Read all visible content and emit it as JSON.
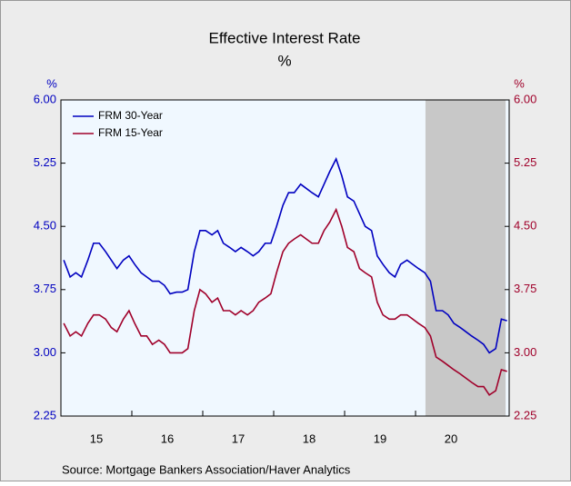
{
  "chart_data": {
    "type": "line",
    "title": "Effective Interest Rate",
    "subtitle": "%",
    "y_label": "%",
    "y2_label": "%",
    "source": "Source:  Mortgage Bankers Association/Haver Analytics",
    "x": [
      15.04,
      15.13,
      15.21,
      15.29,
      15.38,
      15.46,
      15.54,
      15.63,
      15.71,
      15.79,
      15.88,
      15.96,
      16.04,
      16.13,
      16.21,
      16.29,
      16.38,
      16.46,
      16.54,
      16.63,
      16.71,
      16.79,
      16.88,
      16.96,
      17.04,
      17.13,
      17.21,
      17.29,
      17.38,
      17.46,
      17.54,
      17.63,
      17.71,
      17.79,
      17.88,
      17.96,
      18.04,
      18.13,
      18.21,
      18.29,
      18.38,
      18.46,
      18.54,
      18.63,
      18.71,
      18.79,
      18.88,
      18.96,
      19.04,
      19.13,
      19.21,
      19.29,
      19.38,
      19.46,
      19.54,
      19.63,
      19.71,
      19.79,
      19.88,
      19.96,
      20.04,
      20.13,
      20.21,
      20.29,
      20.38,
      20.46,
      20.54,
      20.63,
      20.71,
      20.79,
      20.88,
      20.96,
      21.04,
      21.13,
      21.21,
      21.29
    ],
    "series": [
      {
        "name": "FRM 30-Year",
        "color": "#0000c0",
        "axis": "y",
        "values": [
          4.1,
          3.9,
          3.95,
          3.9,
          4.1,
          4.3,
          4.3,
          4.2,
          4.1,
          4.0,
          4.1,
          4.15,
          4.05,
          3.95,
          3.9,
          3.85,
          3.85,
          3.8,
          3.7,
          3.72,
          3.72,
          3.75,
          4.2,
          4.45,
          4.45,
          4.4,
          4.45,
          4.3,
          4.25,
          4.2,
          4.25,
          4.2,
          4.15,
          4.2,
          4.3,
          4.3,
          4.5,
          4.75,
          4.9,
          4.9,
          5.0,
          4.95,
          4.9,
          4.85,
          5.0,
          5.15,
          5.3,
          5.1,
          4.85,
          4.8,
          4.65,
          4.5,
          4.45,
          4.15,
          4.05,
          3.95,
          3.9,
          4.05,
          4.1,
          4.05,
          4.0,
          3.95,
          3.85,
          3.5,
          3.5,
          3.45,
          3.35,
          3.3,
          3.25,
          3.2,
          3.15,
          3.1,
          3.0,
          3.05,
          3.4,
          3.38
        ]
      },
      {
        "name": "FRM 15-Year",
        "color": "#a0002a",
        "axis": "y2",
        "values": [
          3.35,
          3.2,
          3.25,
          3.2,
          3.35,
          3.45,
          3.45,
          3.4,
          3.3,
          3.25,
          3.4,
          3.5,
          3.35,
          3.2,
          3.2,
          3.1,
          3.15,
          3.1,
          3.0,
          3.0,
          3.0,
          3.05,
          3.5,
          3.75,
          3.7,
          3.6,
          3.65,
          3.5,
          3.5,
          3.45,
          3.5,
          3.45,
          3.5,
          3.6,
          3.65,
          3.7,
          3.95,
          4.2,
          4.3,
          4.35,
          4.4,
          4.35,
          4.3,
          4.3,
          4.45,
          4.55,
          4.7,
          4.5,
          4.25,
          4.2,
          4.0,
          3.95,
          3.9,
          3.6,
          3.45,
          3.4,
          3.4,
          3.45,
          3.45,
          3.4,
          3.35,
          3.3,
          3.2,
          2.95,
          2.9,
          2.85,
          2.8,
          2.75,
          2.7,
          2.65,
          2.6,
          2.6,
          2.5,
          2.55,
          2.8,
          2.78
        ]
      }
    ],
    "xlim": [
      15,
      21.32
    ],
    "xticks": [
      {
        "value": 15,
        "label": "15"
      },
      {
        "value": 16,
        "label": "16"
      },
      {
        "value": 17,
        "label": "17"
      },
      {
        "value": 18,
        "label": "18"
      },
      {
        "value": 19,
        "label": "19"
      },
      {
        "value": 20,
        "label": "20"
      }
    ],
    "ylim": [
      2.25,
      6
    ],
    "yticks": [
      {
        "value": 2.25,
        "label": "2.25"
      },
      {
        "value": 3,
        "label": "3.00"
      },
      {
        "value": 3.75,
        "label": "3.75"
      },
      {
        "value": 4.5,
        "label": "4.50"
      },
      {
        "value": 5.25,
        "label": "5.25"
      },
      {
        "value": 6,
        "label": "6.00"
      }
    ],
    "y2lim": [
      2.25,
      6
    ],
    "y2ticks": [
      {
        "value": 2.25,
        "label": "2.25"
      },
      {
        "value": 3,
        "label": "3.00"
      },
      {
        "value": 3.75,
        "label": "3.75"
      },
      {
        "value": 4.5,
        "label": "4.50"
      },
      {
        "value": 5.25,
        "label": "5.25"
      },
      {
        "value": 6,
        "label": "6.00"
      }
    ],
    "shade": [
      20.14,
      21.27
    ],
    "legend": "top-left"
  }
}
